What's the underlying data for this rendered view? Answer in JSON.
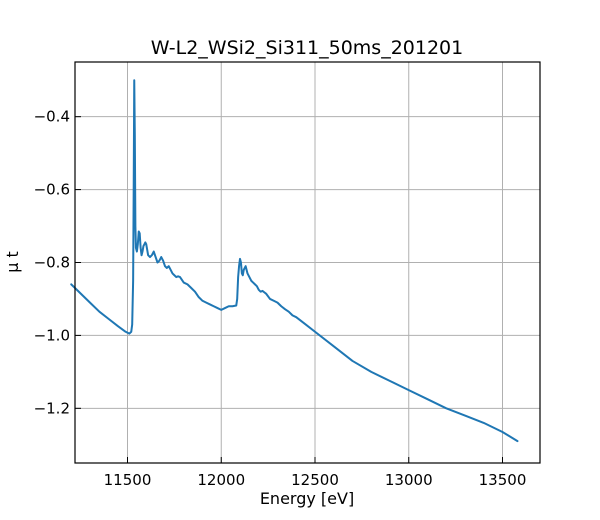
{
  "chart_data": {
    "type": "line",
    "title": "W-L2_WSi2_Si311_50ms_201201",
    "xlabel": "Energy [eV]",
    "ylabel": "μ t",
    "xlim": [
      11220,
      13700
    ],
    "ylim": [
      -1.35,
      -0.25
    ],
    "xticks": [
      11500,
      12000,
      12500,
      13000,
      13500
    ],
    "yticks": [
      -0.4,
      -0.6,
      -0.8,
      -1.0,
      -1.2
    ],
    "xtick_labels": [
      "11500",
      "12000",
      "12500",
      "13000",
      "13500"
    ],
    "ytick_labels": [
      "−0.4",
      "−0.6",
      "−0.8",
      "−1.0",
      "−1.2"
    ],
    "grid": true,
    "series": [
      {
        "color": "#1f77b4",
        "x": [
          11200,
          11220,
          11250,
          11300,
          11350,
          11400,
          11450,
          11490,
          11510,
          11520,
          11525,
          11530,
          11533,
          11536,
          11539,
          11542,
          11545,
          11550,
          11555,
          11560,
          11565,
          11570,
          11575,
          11580,
          11585,
          11590,
          11595,
          11600,
          11610,
          11620,
          11630,
          11640,
          11650,
          11660,
          11670,
          11680,
          11690,
          11700,
          11710,
          11720,
          11730,
          11740,
          11750,
          11760,
          11770,
          11780,
          11800,
          11820,
          11840,
          11860,
          11880,
          11900,
          11920,
          11940,
          11960,
          11980,
          12000,
          12020,
          12040,
          12060,
          12080,
          12085,
          12090,
          12095,
          12100,
          12105,
          12110,
          12115,
          12120,
          12130,
          12140,
          12150,
          12160,
          12170,
          12180,
          12190,
          12200,
          12210,
          12220,
          12230,
          12240,
          12260,
          12280,
          12300,
          12320,
          12340,
          12360,
          12380,
          12400,
          12450,
          12500,
          12600,
          12700,
          12800,
          12900,
          13000,
          13100,
          13200,
          13300,
          13400,
          13500,
          13580
        ],
        "y": [
          -0.86,
          -0.87,
          -0.885,
          -0.91,
          -0.935,
          -0.955,
          -0.975,
          -0.99,
          -0.995,
          -0.99,
          -0.97,
          -0.85,
          -0.6,
          -0.3,
          -0.45,
          -0.7,
          -0.76,
          -0.77,
          -0.75,
          -0.715,
          -0.72,
          -0.76,
          -0.78,
          -0.77,
          -0.755,
          -0.75,
          -0.745,
          -0.75,
          -0.78,
          -0.785,
          -0.78,
          -0.77,
          -0.785,
          -0.8,
          -0.795,
          -0.785,
          -0.795,
          -0.81,
          -0.815,
          -0.81,
          -0.82,
          -0.83,
          -0.835,
          -0.84,
          -0.838,
          -0.84,
          -0.855,
          -0.86,
          -0.87,
          -0.88,
          -0.895,
          -0.905,
          -0.91,
          -0.915,
          -0.92,
          -0.925,
          -0.93,
          -0.925,
          -0.92,
          -0.92,
          -0.918,
          -0.9,
          -0.84,
          -0.81,
          -0.79,
          -0.8,
          -0.83,
          -0.835,
          -0.82,
          -0.81,
          -0.83,
          -0.84,
          -0.85,
          -0.855,
          -0.86,
          -0.865,
          -0.875,
          -0.88,
          -0.878,
          -0.882,
          -0.886,
          -0.9,
          -0.905,
          -0.91,
          -0.92,
          -0.928,
          -0.935,
          -0.945,
          -0.95,
          -0.97,
          -0.99,
          -1.03,
          -1.07,
          -1.1,
          -1.125,
          -1.15,
          -1.175,
          -1.2,
          -1.22,
          -1.24,
          -1.265,
          -1.29
        ]
      }
    ]
  }
}
